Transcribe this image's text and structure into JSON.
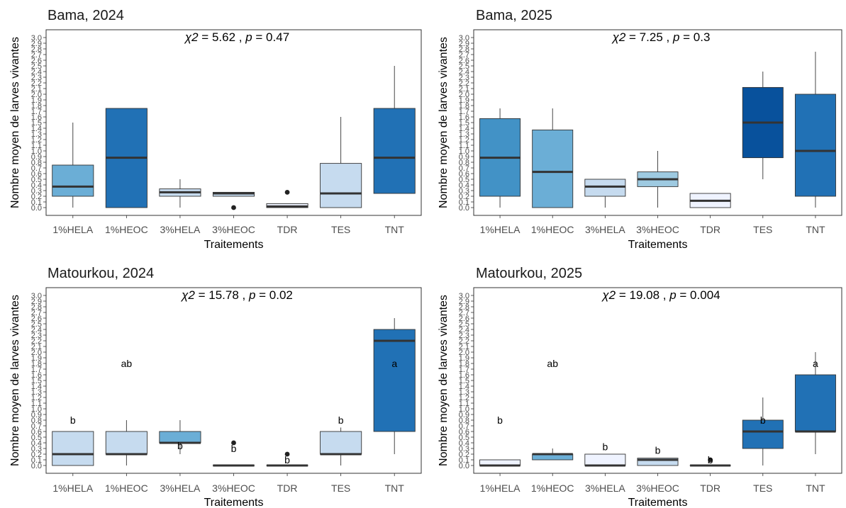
{
  "chart_data": [
    {
      "type": "boxplot",
      "title": "Bama, 2024",
      "stat": {
        "chi_label": "χ2",
        "chi": "5.62",
        "p_label": "p",
        "p": "0.47"
      },
      "xlabel": "Traitements",
      "ylabel": "Nombre moyen de larves vivantes",
      "ylim": [
        0,
        3.0
      ],
      "yticks": [
        "0.0",
        "0.1",
        "0.2",
        "0.3",
        "0.4",
        "0.5",
        "0.6",
        "0.7",
        "0.8",
        "0.9",
        "1.0",
        "1.1",
        "1.2",
        "1.3",
        "1.4",
        "1.5",
        "1.6",
        "1.7",
        "1.8",
        "1.9",
        "2.0",
        "2.1",
        "2.2",
        "2.3",
        "2.4",
        "2.5",
        "2.6",
        "2.7",
        "2.8",
        "2.9",
        "3.0"
      ],
      "categories": [
        "1%HELA",
        "1%HEOC",
        "3%HELA",
        "3%HEOC",
        "TDR",
        "TES",
        "TNT"
      ],
      "boxes": [
        {
          "min": 0.0,
          "q1": 0.2,
          "median": 0.37,
          "q3": 0.75,
          "max": 1.5,
          "outliers": [],
          "color": "#6baed6",
          "label": ""
        },
        {
          "min": 0.0,
          "q1": 0.0,
          "median": 0.88,
          "q3": 1.75,
          "max": 1.75,
          "outliers": [],
          "color": "#2171b5",
          "label": ""
        },
        {
          "min": 0.0,
          "q1": 0.2,
          "median": 0.27,
          "q3": 0.33,
          "max": 0.5,
          "outliers": [],
          "color": "#c6dbef",
          "label": ""
        },
        {
          "min": 0.2,
          "q1": 0.2,
          "median": 0.25,
          "q3": 0.27,
          "max": 0.27,
          "outliers": [
            0.0
          ],
          "color": "#c6dbef",
          "label": ""
        },
        {
          "min": 0.0,
          "q1": 0.0,
          "median": 0.02,
          "q3": 0.07,
          "max": 0.07,
          "outliers": [
            0.27
          ],
          "color": "#eff3ff",
          "label": ""
        },
        {
          "min": 0.0,
          "q1": 0.0,
          "median": 0.25,
          "q3": 0.78,
          "max": 1.6,
          "outliers": [],
          "color": "#c6dbef",
          "label": ""
        },
        {
          "min": 0.25,
          "q1": 0.25,
          "median": 0.88,
          "q3": 1.75,
          "max": 2.5,
          "outliers": [],
          "color": "#2171b5",
          "label": ""
        }
      ]
    },
    {
      "type": "boxplot",
      "title": "Bama, 2025",
      "stat": {
        "chi_label": "χ2",
        "chi": "7.25",
        "p_label": "p",
        "p": "0.3"
      },
      "xlabel": "Traitements",
      "ylabel": "Nombre moyen de larves vivantes",
      "ylim": [
        0,
        3.0
      ],
      "yticks": [
        "0.0",
        "0.1",
        "0.2",
        "0.3",
        "0.4",
        "0.5",
        "0.6",
        "0.7",
        "0.8",
        "0.9",
        "1.0",
        "1.1",
        "1.2",
        "1.3",
        "1.4",
        "1.5",
        "1.6",
        "1.7",
        "1.8",
        "1.9",
        "2.0",
        "2.1",
        "2.2",
        "2.3",
        "2.4",
        "2.5",
        "2.6",
        "2.7",
        "2.8",
        "2.9",
        "3.0"
      ],
      "categories": [
        "1%HELA",
        "1%HEOC",
        "3%HELA",
        "3%HEOC",
        "TDR",
        "TES",
        "TNT"
      ],
      "boxes": [
        {
          "min": 0.0,
          "q1": 0.2,
          "median": 0.88,
          "q3": 1.57,
          "max": 1.75,
          "outliers": [],
          "color": "#4292c6",
          "label": ""
        },
        {
          "min": 0.0,
          "q1": 0.0,
          "median": 0.63,
          "q3": 1.37,
          "max": 1.75,
          "outliers": [],
          "color": "#6baed6",
          "label": ""
        },
        {
          "min": 0.0,
          "q1": 0.2,
          "median": 0.37,
          "q3": 0.5,
          "max": 0.5,
          "outliers": [],
          "color": "#c6dbef",
          "label": ""
        },
        {
          "min": 0.0,
          "q1": 0.37,
          "median": 0.5,
          "q3": 0.63,
          "max": 1.0,
          "outliers": [],
          "color": "#9ecae1",
          "label": ""
        },
        {
          "min": 0.0,
          "q1": 0.0,
          "median": 0.12,
          "q3": 0.25,
          "max": 0.25,
          "outliers": [],
          "color": "#eff3ff",
          "label": ""
        },
        {
          "min": 0.5,
          "q1": 0.88,
          "median": 1.5,
          "q3": 2.12,
          "max": 2.4,
          "outliers": [],
          "color": "#08519c",
          "label": ""
        },
        {
          "min": 0.0,
          "q1": 0.2,
          "median": 1.0,
          "q3": 2.0,
          "max": 2.75,
          "outliers": [],
          "color": "#2171b5",
          "label": ""
        }
      ]
    },
    {
      "type": "boxplot",
      "title": "Matourkou, 2024",
      "stat": {
        "chi_label": "χ2",
        "chi": "15.78",
        "p_label": "p",
        "p": "0.02"
      },
      "xlabel": "Traitements",
      "ylabel": "Nombre moyen de larves vivantes",
      "ylim": [
        0,
        3.0
      ],
      "yticks": [
        "0.0",
        "0.1",
        "0.2",
        "0.3",
        "0.4",
        "0.5",
        "0.6",
        "0.7",
        "0.8",
        "0.9",
        "1.0",
        "1.1",
        "1.2",
        "1.3",
        "1.4",
        "1.5",
        "1.6",
        "1.7",
        "1.8",
        "1.9",
        "2.0",
        "2.1",
        "2.2",
        "2.3",
        "2.4",
        "2.5",
        "2.6",
        "2.7",
        "2.8",
        "2.9",
        "3.0"
      ],
      "categories": [
        "1%HELA",
        "1%HEOC",
        "3%HELA",
        "3%HEOC",
        "TDR",
        "TES",
        "TNT"
      ],
      "boxes": [
        {
          "min": 0.0,
          "q1": 0.0,
          "median": 0.2,
          "q3": 0.6,
          "max": 0.6,
          "outliers": [],
          "color": "#c6dbef",
          "label": "b",
          "label_y": 0.8
        },
        {
          "min": 0.0,
          "q1": 0.2,
          "median": 0.2,
          "q3": 0.6,
          "max": 0.8,
          "outliers": [],
          "color": "#c6dbef",
          "label": "ab",
          "label_y": 1.8
        },
        {
          "min": 0.2,
          "q1": 0.4,
          "median": 0.4,
          "q3": 0.6,
          "max": 0.8,
          "outliers": [],
          "color": "#6baed6",
          "label": "b",
          "label_y": 0.35
        },
        {
          "min": 0.0,
          "q1": 0.0,
          "median": 0.0,
          "q3": 0.0,
          "max": 0.0,
          "outliers": [
            0.4
          ],
          "color": "#c6dbef",
          "label": "b",
          "label_y": 0.3
        },
        {
          "min": 0.0,
          "q1": 0.0,
          "median": 0.0,
          "q3": 0.0,
          "max": 0.0,
          "outliers": [
            0.2
          ],
          "color": "#c6dbef",
          "label": "b",
          "label_y": 0.1
        },
        {
          "min": 0.0,
          "q1": 0.2,
          "median": 0.2,
          "q3": 0.6,
          "max": 0.67,
          "outliers": [],
          "color": "#c6dbef",
          "label": "b",
          "label_y": 0.8
        },
        {
          "min": 0.2,
          "q1": 0.6,
          "median": 2.2,
          "q3": 2.4,
          "max": 2.6,
          "outliers": [],
          "color": "#2171b5",
          "label": "a",
          "label_y": 1.8
        }
      ]
    },
    {
      "type": "boxplot",
      "title": "Matourkou, 2025",
      "stat": {
        "chi_label": "χ2",
        "chi": "19.08",
        "p_label": "p",
        "p": "0.004"
      },
      "xlabel": "Traitements",
      "ylabel": "Nombre moyen de larves vivantes",
      "ylim": [
        0,
        3.0
      ],
      "yticks": [
        "0.0",
        "0.1",
        "0.2",
        "0.3",
        "0.4",
        "0.5",
        "0.6",
        "0.7",
        "0.8",
        "0.9",
        "1.0",
        "1.1",
        "1.2",
        "1.3",
        "1.4",
        "1.5",
        "1.6",
        "1.7",
        "1.8",
        "1.9",
        "2.0",
        "2.1",
        "2.2",
        "2.3",
        "2.4",
        "2.5",
        "2.6",
        "2.7",
        "2.8",
        "2.9",
        "3.0"
      ],
      "categories": [
        "1%HELA",
        "1%HEOC",
        "3%HELA",
        "3%HEOC",
        "TDR",
        "TES",
        "TNT"
      ],
      "boxes": [
        {
          "min": 0.0,
          "q1": 0.0,
          "median": 0.0,
          "q3": 0.1,
          "max": 0.1,
          "outliers": [],
          "color": "#eff3ff",
          "label": "b",
          "label_y": 0.8
        },
        {
          "min": 0.1,
          "q1": 0.1,
          "median": 0.2,
          "q3": 0.2,
          "max": 0.3,
          "outliers": [],
          "color": "#6baed6",
          "label": "ab",
          "label_y": 1.8
        },
        {
          "min": 0.0,
          "q1": 0.0,
          "median": 0.0,
          "q3": 0.2,
          "max": 0.2,
          "outliers": [],
          "color": "#eff3ff",
          "label": "b",
          "label_y": 0.33
        },
        {
          "min": 0.0,
          "q1": 0.0,
          "median": 0.1,
          "q3": 0.13,
          "max": 0.13,
          "outliers": [],
          "color": "#c6dbef",
          "label": "b",
          "label_y": 0.27
        },
        {
          "min": 0.0,
          "q1": 0.0,
          "median": 0.0,
          "q3": 0.0,
          "max": 0.0,
          "outliers": [
            0.1
          ],
          "color": "#eff3ff",
          "label": "b",
          "label_y": 0.1
        },
        {
          "min": 0.0,
          "q1": 0.3,
          "median": 0.6,
          "q3": 0.8,
          "max": 1.2,
          "outliers": [],
          "color": "#2171b5",
          "label": "b",
          "label_y": 0.8
        },
        {
          "min": 0.2,
          "q1": 0.6,
          "median": 0.6,
          "q3": 1.6,
          "max": 2.0,
          "outliers": [],
          "color": "#2171b5",
          "label": "a",
          "label_y": 1.8
        }
      ]
    }
  ]
}
